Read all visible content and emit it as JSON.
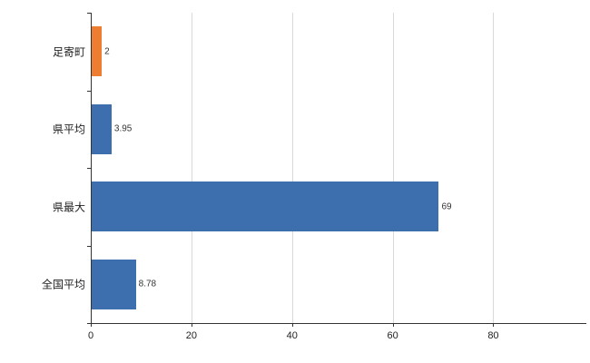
{
  "chart_data": {
    "type": "bar",
    "orientation": "horizontal",
    "title": "",
    "xlabel": "",
    "ylabel": "",
    "categories": [
      "足寄町",
      "県平均",
      "県最大",
      "全国平均"
    ],
    "values": [
      2,
      3.95,
      69,
      8.78
    ],
    "value_labels": [
      "2",
      "3.95",
      "69",
      "8.78"
    ],
    "bar_colors": [
      "#ED7D31",
      "#3D6FAF",
      "#3D6FAF",
      "#3D6FAF"
    ],
    "xticks": [
      0,
      20,
      40,
      60,
      80
    ],
    "xtick_labels": [
      "0",
      "20",
      "40",
      "60",
      "80"
    ],
    "xlim": [
      0,
      98.5
    ],
    "grid": "vertical",
    "legend": "none",
    "colors": {
      "axis": "#333333",
      "gridline": "#d9d9d9",
      "background": "#ffffff",
      "accent_orange": "#ED7D31",
      "accent_blue": "#3D6FAF"
    }
  }
}
